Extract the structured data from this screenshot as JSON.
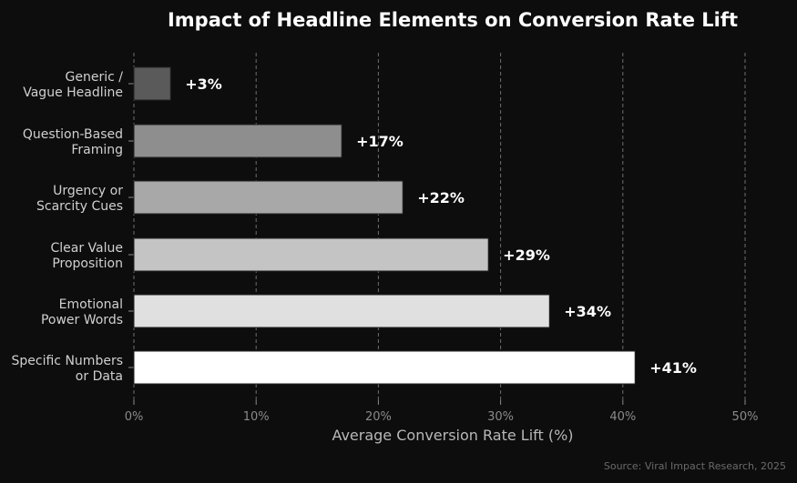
{
  "chart_data": {
    "type": "bar",
    "orientation": "horizontal",
    "title": "Impact of Headline Elements on Conversion Rate Lift",
    "xlabel": "Average Conversion Rate Lift (%)",
    "ylabel": "",
    "xlim": [
      0,
      50
    ],
    "ticks": [
      0,
      10,
      20,
      30,
      40,
      50
    ],
    "tick_labels": [
      "0%",
      "10%",
      "20%",
      "30%",
      "40%",
      "50%"
    ],
    "grid": true,
    "categories": [
      [
        "Generic /",
        "Vague Headline"
      ],
      [
        "Question-Based",
        "Framing"
      ],
      [
        "Urgency or",
        "Scarcity Cues"
      ],
      [
        "Clear Value",
        "Proposition"
      ],
      [
        "Emotional",
        "Power Words"
      ],
      [
        "Specific Numbers",
        "or Data"
      ]
    ],
    "values": [
      3,
      17,
      22,
      29,
      34,
      41
    ],
    "value_labels": [
      "+3%",
      "+17%",
      "+22%",
      "+29%",
      "+34%",
      "+41%"
    ],
    "colors": [
      "#5a5a5a",
      "#8e8e8e",
      "#a8a8a8",
      "#c4c4c4",
      "#e0e0e0",
      "#ffffff"
    ],
    "source": "Source: Viral Impact Research, 2025"
  }
}
